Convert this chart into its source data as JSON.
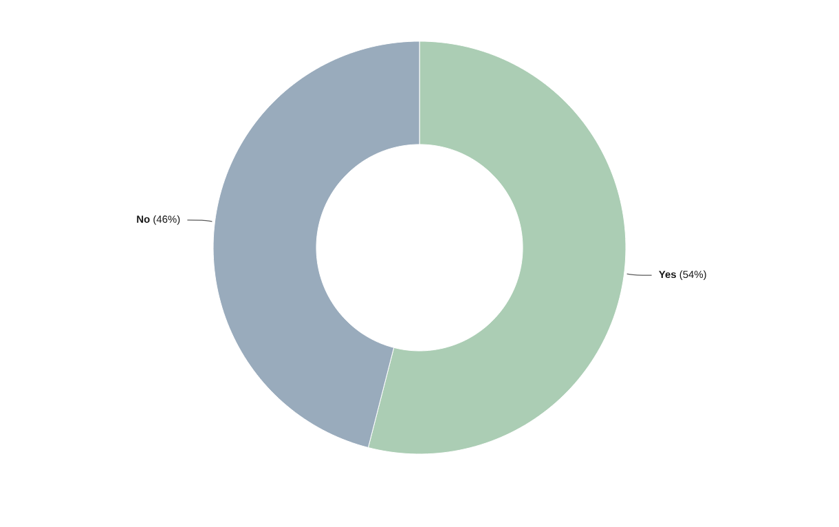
{
  "chart_data": {
    "type": "donut",
    "categories": [
      "Yes",
      "No"
    ],
    "values": [
      54,
      46
    ],
    "colors": [
      "#abcdb4",
      "#99abbc"
    ],
    "value_labels": [
      "(54%)",
      "(46%)"
    ]
  }
}
